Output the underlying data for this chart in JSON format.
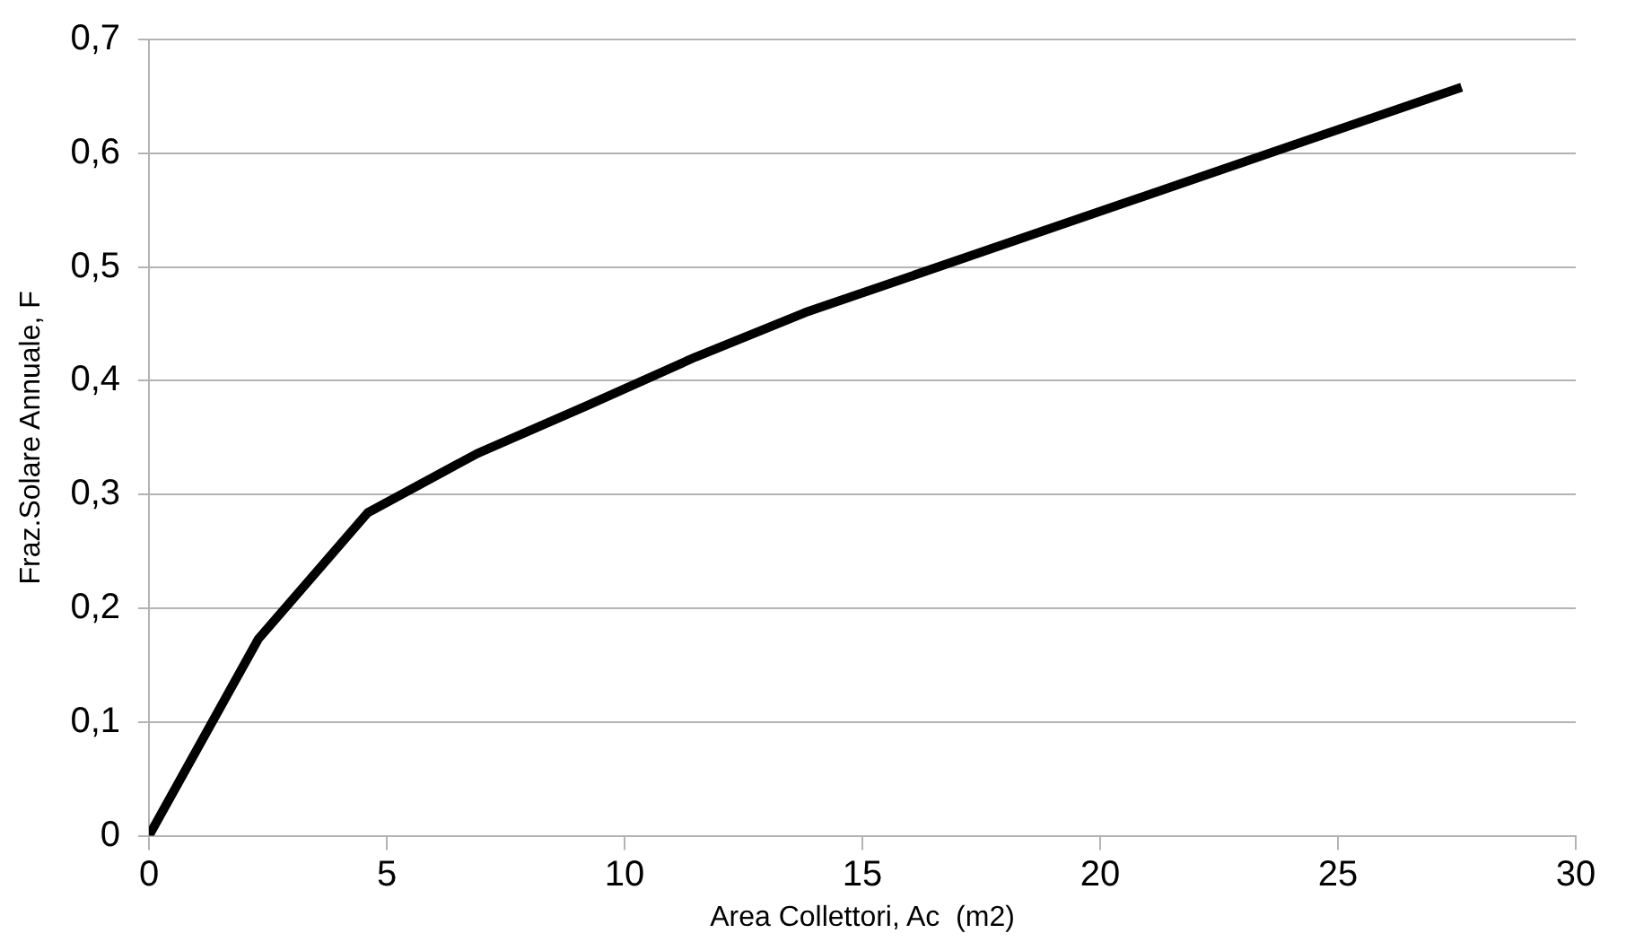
{
  "chart_data": {
    "type": "line",
    "xlabel": "Area Collettori, Ac  (m2)",
    "ylabel": "Fraz.Solare Annuale, F",
    "x": [
      0,
      2.3,
      4.6,
      6.9,
      9.2,
      11.5,
      13.8,
      27.6
    ],
    "series": [
      {
        "color": "#000000",
        "values": [
          0,
          0.173,
          0.284,
          0.336,
          0.378,
          0.421,
          0.46,
          0.658
        ]
      }
    ],
    "xlim": [
      0,
      30
    ],
    "xticks": [
      0,
      5,
      10,
      15,
      20,
      25,
      30
    ],
    "ylim": [
      0,
      0.7
    ],
    "yticks": [
      0,
      {
        "value": 0.1,
        "label": "0,1"
      },
      {
        "value": 0.2,
        "label": "0,2"
      },
      {
        "value": 0.3,
        "label": "0,3"
      },
      {
        "value": 0.4,
        "label": "0,4"
      },
      {
        "value": 0.5,
        "label": "0,5"
      },
      {
        "value": 0.6,
        "label": "0,6"
      },
      {
        "value": 0.7,
        "label": "0,7"
      }
    ],
    "grid": "y",
    "legend": false,
    "marker": "none",
    "line_style": "solid"
  }
}
